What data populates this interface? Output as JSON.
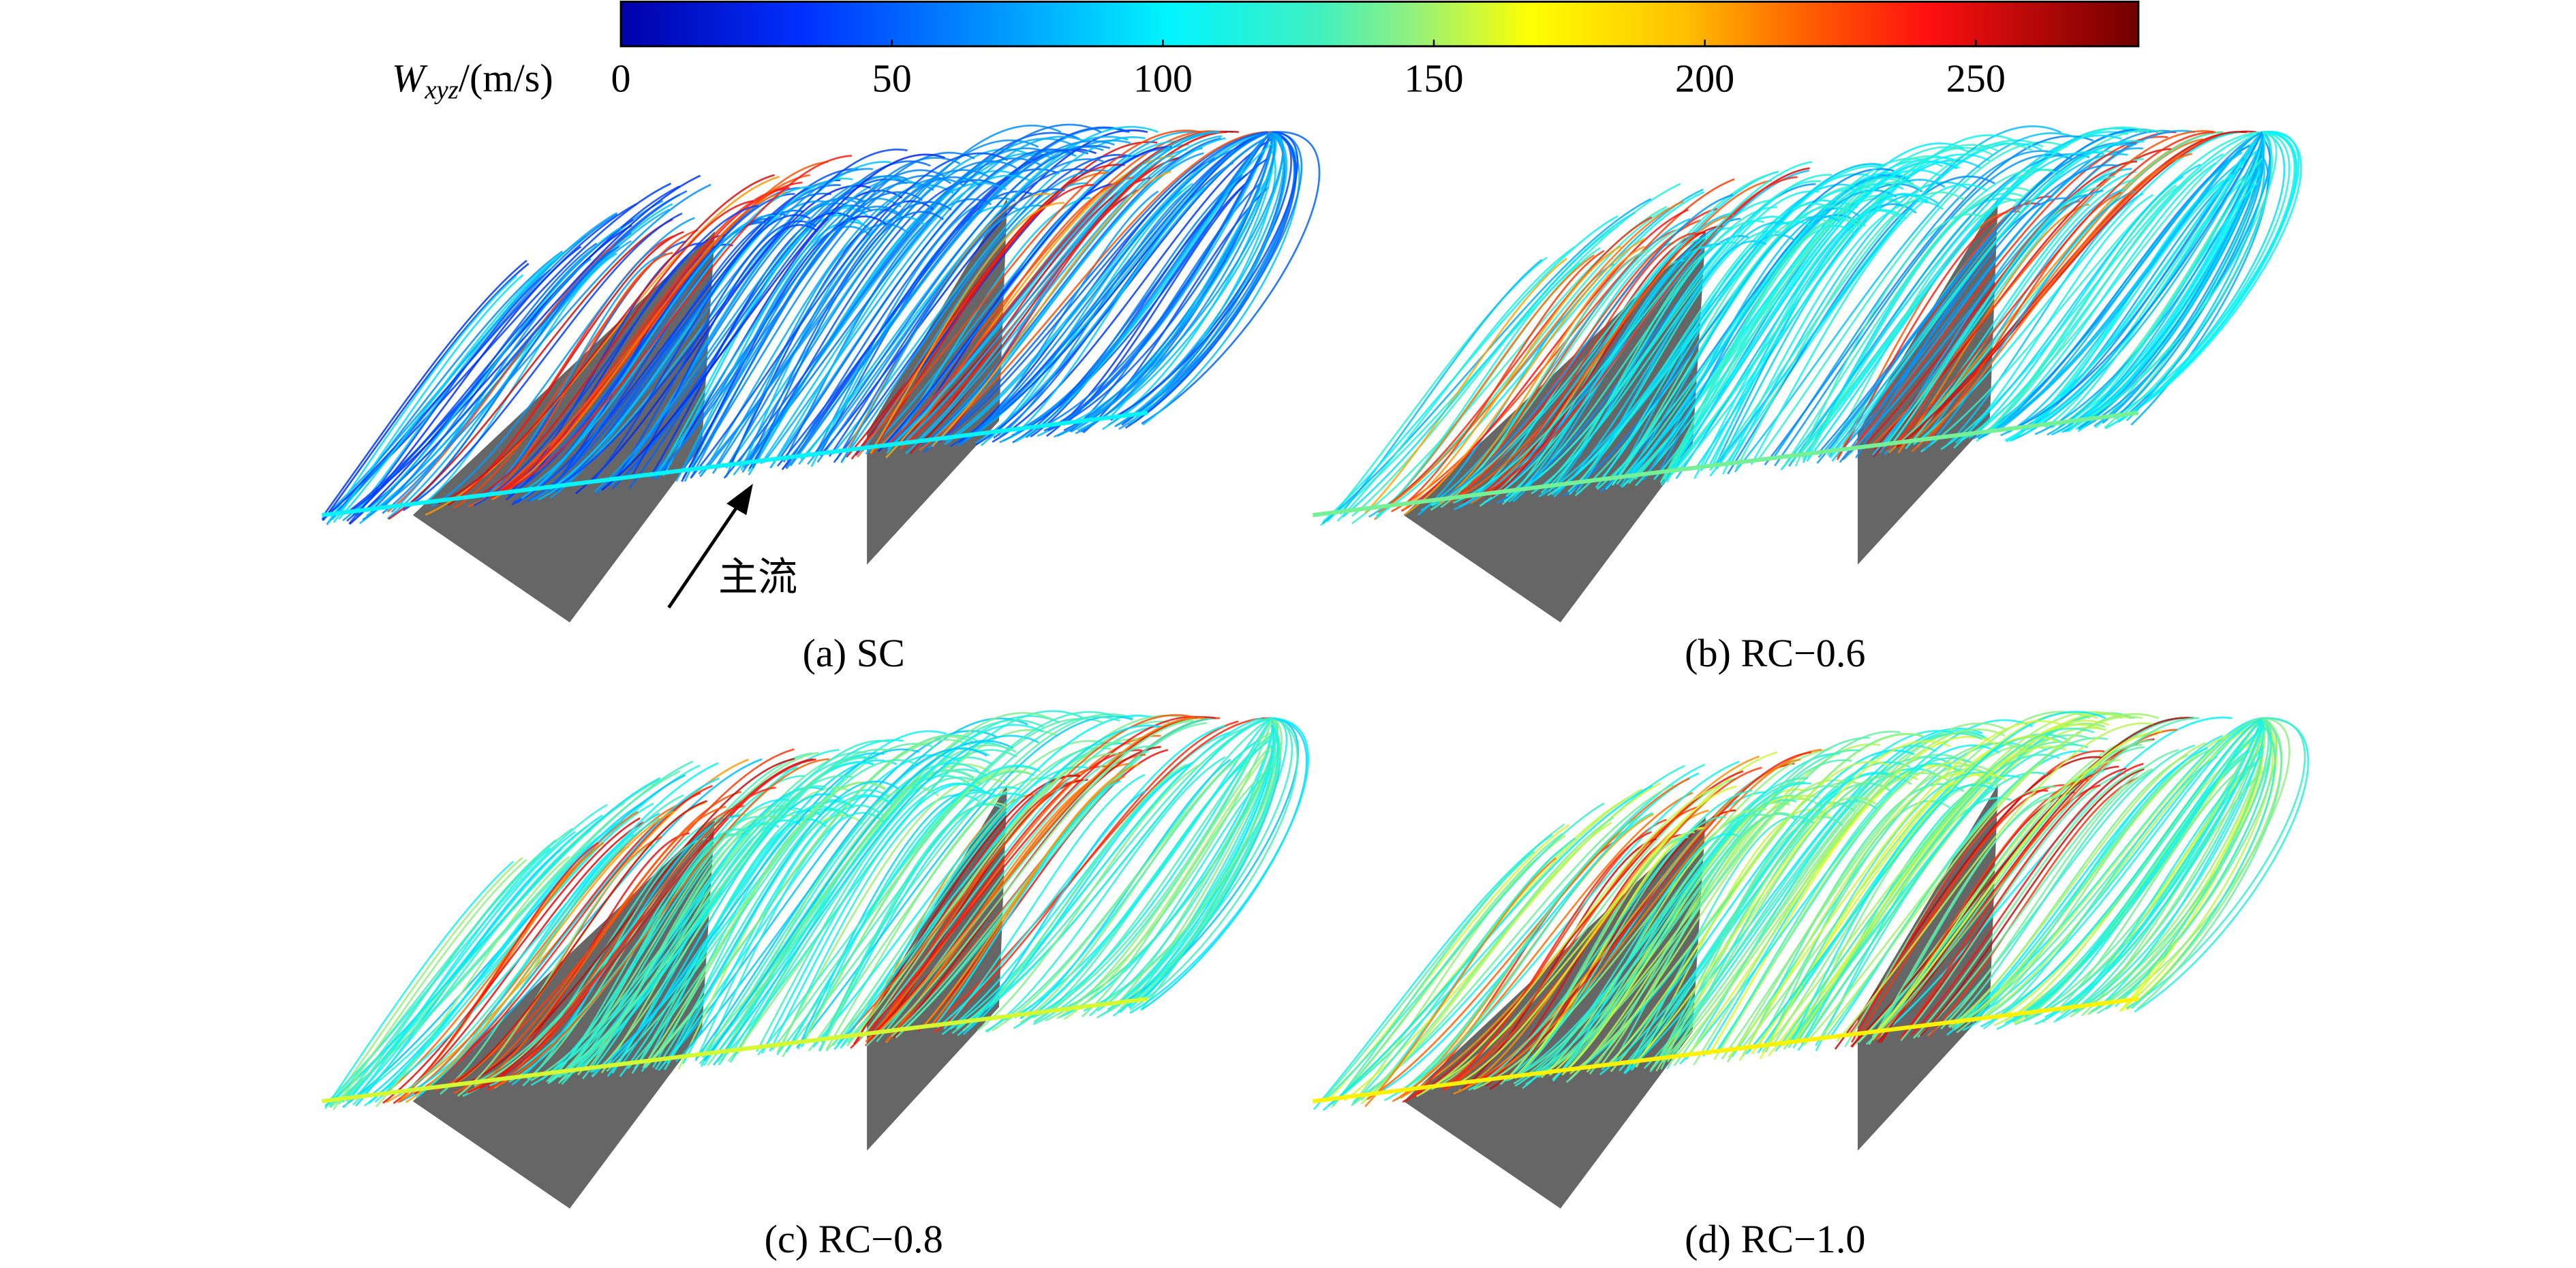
{
  "colorbar": {
    "label_main": "W",
    "label_sub": "xyz",
    "label_unit": "/(m/s)",
    "range": [
      0,
      280
    ],
    "ticks": [
      0,
      50,
      100,
      150,
      200,
      250
    ]
  },
  "panels": [
    {
      "caption": "(a) SC"
    },
    {
      "caption": "(b) RC−0.6"
    },
    {
      "caption": "(c) RC−0.8"
    },
    {
      "caption": "(d) RC−1.0"
    }
  ],
  "annotation": "主流"
}
